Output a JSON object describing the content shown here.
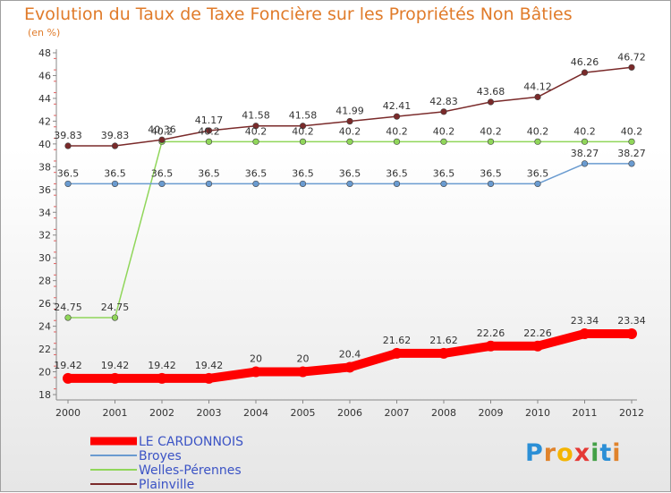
{
  "page": {
    "title": "Evolution du Taux de Taxe Foncière sur les Propriétés Non Bâties",
    "unit": "(en %)"
  },
  "brand": {
    "logo_letters": [
      "P",
      "r",
      "o",
      "x",
      "i",
      "t",
      "i"
    ],
    "logo_colors": [
      "#2b8fd6",
      "#e0832b",
      "#f4b400",
      "#e53935",
      "#43a047",
      "#2b8fd6",
      "#e0832b"
    ]
  },
  "chart_data": {
    "type": "line",
    "title": "Evolution du Taux de Taxe Foncière sur les Propriétés Non Bâties",
    "ylabel": "(en %)",
    "xlabel": "",
    "ylim": [
      18,
      48
    ],
    "yticks": [
      18,
      20,
      22,
      24,
      26,
      28,
      30,
      32,
      34,
      36,
      38,
      40,
      42,
      44,
      46,
      48
    ],
    "categories": [
      "2000",
      "2001",
      "2002",
      "2003",
      "2004",
      "2005",
      "2006",
      "2007",
      "2008",
      "2009",
      "2010",
      "2011",
      "2012"
    ],
    "series": [
      {
        "name": "LE CARDONNOIS",
        "color": "#ff0000",
        "values": [
          19.42,
          19.42,
          19.42,
          19.42,
          20,
          20,
          20.4,
          21.62,
          21.62,
          22.26,
          22.26,
          23.34,
          23.34
        ],
        "labels": [
          "19.42",
          "19.42",
          "19.42",
          "19.42",
          "20",
          "20",
          "20.4",
          "21.62",
          "21.62",
          "22.26",
          "22.26",
          "23.34",
          "23.34"
        ]
      },
      {
        "name": "Broyes",
        "color": "#6a9bd0",
        "values": [
          36.5,
          36.5,
          36.5,
          36.5,
          36.5,
          36.5,
          36.5,
          36.5,
          36.5,
          36.5,
          36.5,
          38.27,
          38.27
        ],
        "labels": [
          "36.5",
          "36.5",
          "36.5",
          "36.5",
          "36.5",
          "36.5",
          "36.5",
          "36.5",
          "36.5",
          "36.5",
          "36.5",
          "38.27",
          "38.27"
        ]
      },
      {
        "name": "Welles-Pérennes",
        "color": "#90d65a",
        "values": [
          24.75,
          24.75,
          40.2,
          40.2,
          40.2,
          40.2,
          40.2,
          40.2,
          40.2,
          40.2,
          40.2,
          40.2,
          40.2
        ],
        "labels": [
          "24.75",
          "24.75",
          "40.2",
          "40.2",
          "40.2",
          "40.2",
          "40.2",
          "40.2",
          "40.2",
          "40.2",
          "40.2",
          "40.2",
          "40.2"
        ]
      },
      {
        "name": "Plainville",
        "color": "#7a2a2a",
        "values": [
          39.83,
          39.83,
          40.36,
          41.17,
          41.58,
          41.58,
          41.99,
          42.41,
          42.83,
          43.68,
          44.12,
          46.26,
          46.72
        ],
        "labels": [
          "39.83",
          "39.83",
          "40.36",
          "41.17",
          "41.58",
          "41.58",
          "41.99",
          "42.41",
          "42.83",
          "43.68",
          "44.12",
          "46.26",
          "46.72"
        ]
      }
    ],
    "legend": [
      "LE CARDONNOIS",
      "Broyes",
      "Welles-Pérennes",
      "Plainville"
    ],
    "grid": false
  }
}
